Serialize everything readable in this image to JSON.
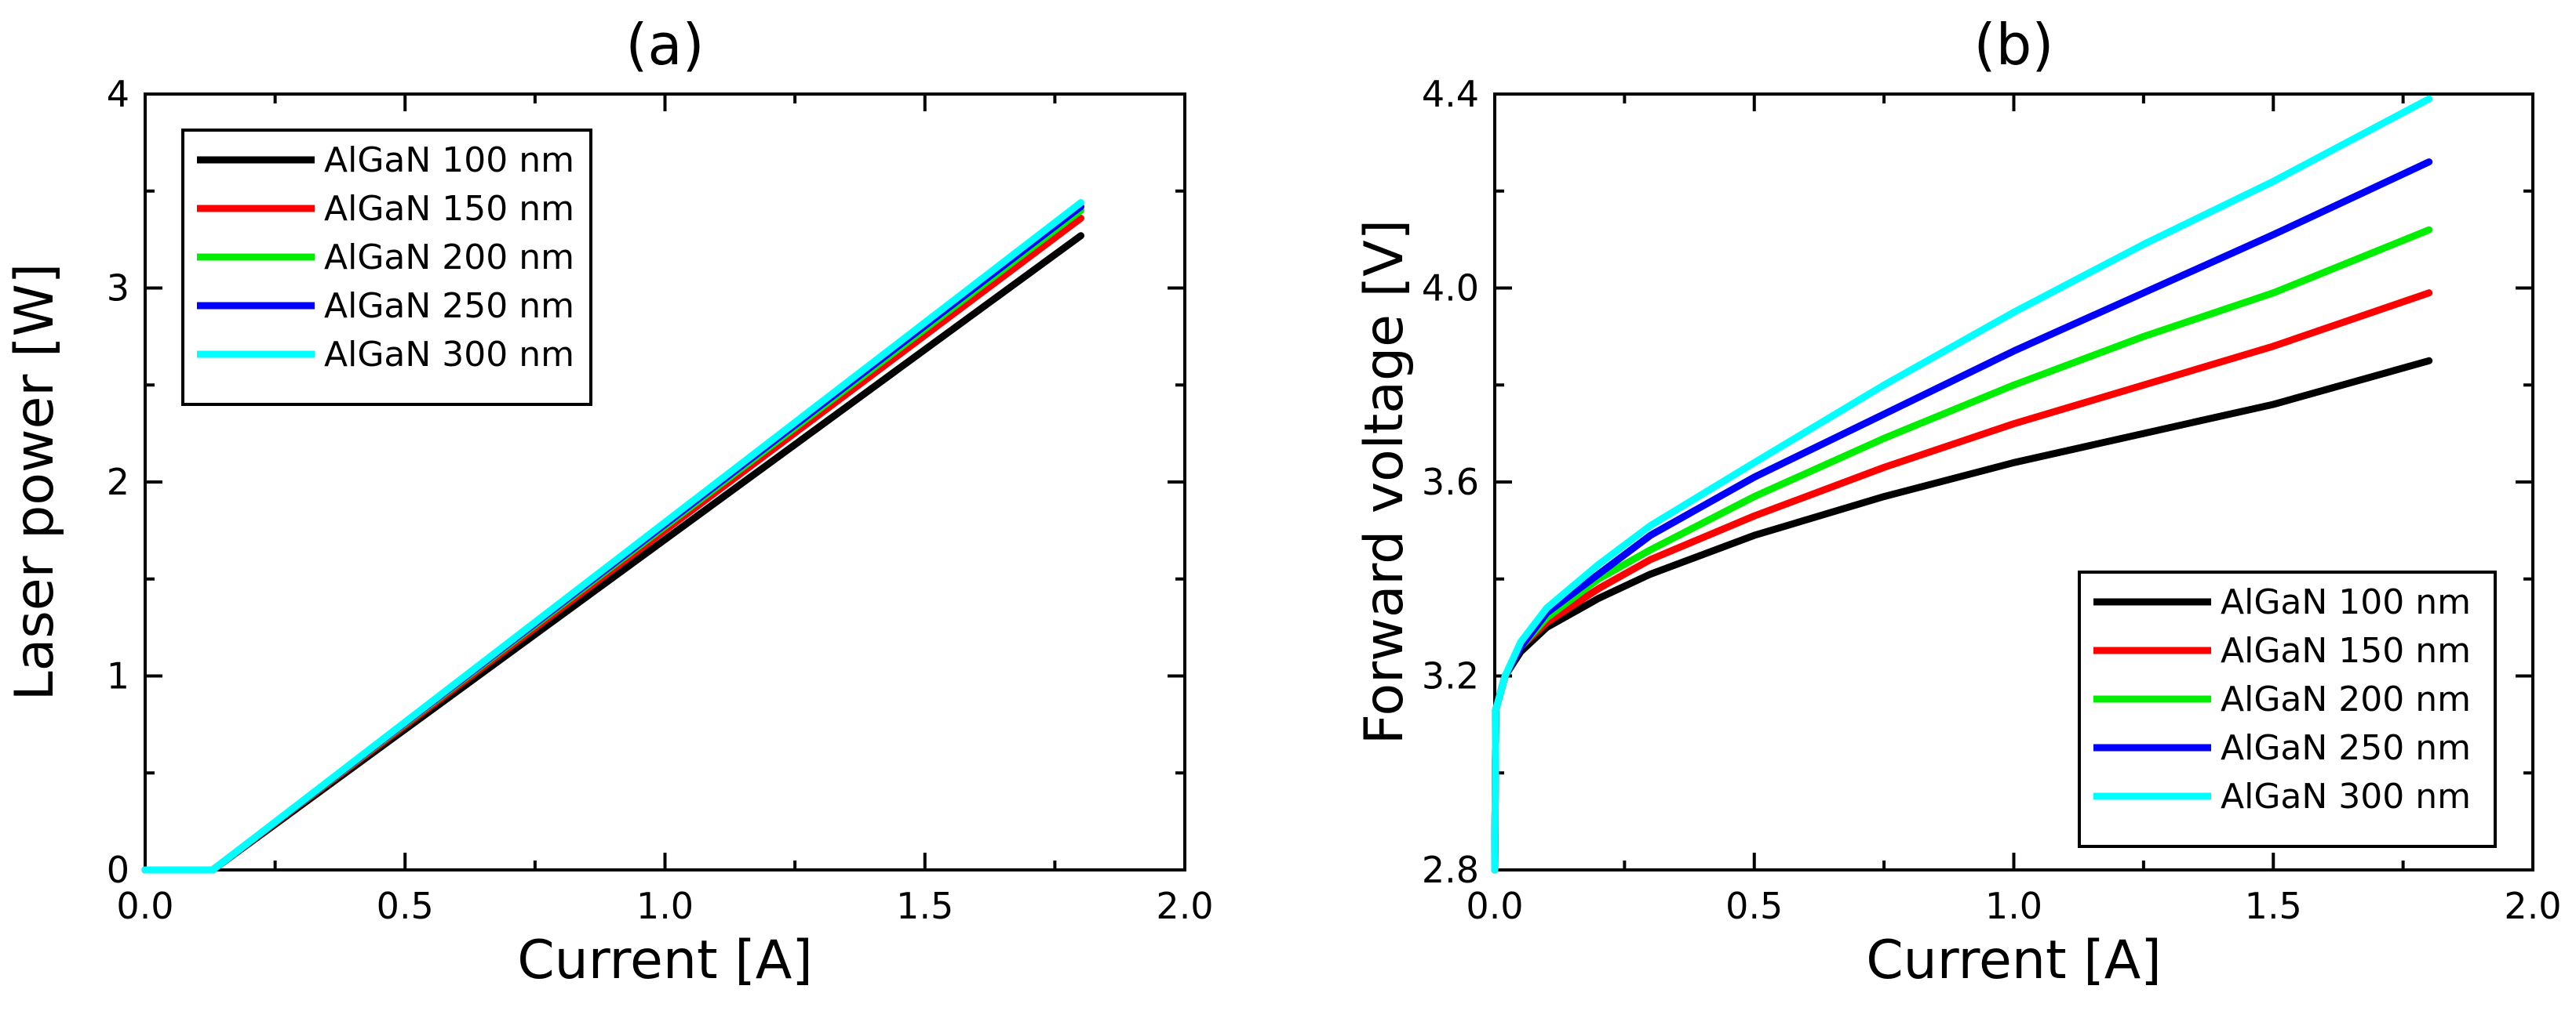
{
  "chart_data": [
    {
      "type": "line",
      "panel": "(a)",
      "title": "(a)",
      "xlabel": "Current [A]",
      "ylabel": "Laser power [W]",
      "xlim": [
        0,
        2.0
      ],
      "ylim": [
        0,
        4
      ],
      "xticks": [
        "0.0",
        "0.5",
        "1.0",
        "1.5",
        "2.0"
      ],
      "yticks": [
        "0",
        "1",
        "2",
        "3",
        "4"
      ],
      "xtick_values": [
        0,
        0.5,
        1.0,
        1.5,
        2.0
      ],
      "ytick_values": [
        0,
        1,
        2,
        3,
        4
      ],
      "legend_position": "top-left",
      "series": [
        {
          "name": "AlGaN 100 nm",
          "color": "#000000",
          "x": [
            0,
            0.12,
            0.13,
            1.8
          ],
          "y": [
            0,
            0,
            0,
            3.27
          ]
        },
        {
          "name": "AlGaN 150 nm",
          "color": "#ff0000",
          "x": [
            0,
            0.12,
            0.13,
            1.8
          ],
          "y": [
            0,
            0,
            0,
            3.36
          ]
        },
        {
          "name": "AlGaN 200 nm",
          "color": "#00ee00",
          "x": [
            0,
            0.12,
            0.13,
            1.8
          ],
          "y": [
            0,
            0,
            0,
            3.4
          ]
        },
        {
          "name": "AlGaN 250 nm",
          "color": "#0000ff",
          "x": [
            0,
            0.12,
            0.13,
            1.8
          ],
          "y": [
            0,
            0,
            0,
            3.42
          ]
        },
        {
          "name": "AlGaN 300 nm",
          "color": "#00ffff",
          "x": [
            0,
            0.12,
            0.13,
            1.8
          ],
          "y": [
            0,
            0,
            0,
            3.44
          ]
        }
      ]
    },
    {
      "type": "line",
      "panel": "(b)",
      "title": "(b)",
      "xlabel": "Current [A]",
      "ylabel": "Forward voltage [V]",
      "xlim": [
        0,
        2.0
      ],
      "ylim": [
        2.8,
        4.4
      ],
      "xticks": [
        "0.0",
        "0.5",
        "1.0",
        "1.5",
        "2.0"
      ],
      "yticks": [
        "2.8",
        "3.2",
        "3.6",
        "4.0",
        "4.4"
      ],
      "xtick_values": [
        0,
        0.5,
        1.0,
        1.5,
        2.0
      ],
      "ytick_values": [
        2.8,
        3.2,
        3.6,
        4.0,
        4.4
      ],
      "legend_position": "bottom-right",
      "series": [
        {
          "name": "AlGaN 100 nm",
          "color": "#000000",
          "x": [
            0,
            0.002,
            0.02,
            0.05,
            0.1,
            0.2,
            0.3,
            0.5,
            0.75,
            1.0,
            1.25,
            1.5,
            1.8
          ],
          "y": [
            2.8,
            3.13,
            3.2,
            3.25,
            3.3,
            3.36,
            3.41,
            3.49,
            3.57,
            3.64,
            3.7,
            3.76,
            3.85
          ]
        },
        {
          "name": "AlGaN 150 nm",
          "color": "#ff0000",
          "x": [
            0,
            0.002,
            0.02,
            0.05,
            0.1,
            0.2,
            0.3,
            0.5,
            0.75,
            1.0,
            1.25,
            1.5,
            1.8
          ],
          "y": [
            2.8,
            3.13,
            3.2,
            3.26,
            3.31,
            3.38,
            3.44,
            3.53,
            3.63,
            3.72,
            3.8,
            3.88,
            3.99
          ]
        },
        {
          "name": "AlGaN 200 nm",
          "color": "#00ee00",
          "x": [
            0,
            0.002,
            0.02,
            0.05,
            0.1,
            0.2,
            0.3,
            0.5,
            0.75,
            1.0,
            1.25,
            1.5,
            1.8
          ],
          "y": [
            2.8,
            3.13,
            3.2,
            3.26,
            3.32,
            3.4,
            3.46,
            3.57,
            3.69,
            3.8,
            3.9,
            3.99,
            4.12
          ]
        },
        {
          "name": "AlGaN 250 nm",
          "color": "#0000ff",
          "x": [
            0,
            0.002,
            0.02,
            0.05,
            0.1,
            0.2,
            0.3,
            0.5,
            0.75,
            1.0,
            1.25,
            1.5,
            1.8
          ],
          "y": [
            2.8,
            3.13,
            3.2,
            3.26,
            3.33,
            3.41,
            3.49,
            3.61,
            3.74,
            3.87,
            3.99,
            4.11,
            4.26
          ]
        },
        {
          "name": "AlGaN 300 nm",
          "color": "#00ffff",
          "x": [
            0,
            0.002,
            0.02,
            0.05,
            0.1,
            0.2,
            0.3,
            0.5,
            0.75,
            1.0,
            1.25,
            1.5,
            1.8
          ],
          "y": [
            2.8,
            3.13,
            3.2,
            3.27,
            3.34,
            3.43,
            3.51,
            3.64,
            3.8,
            3.95,
            4.09,
            4.22,
            4.39
          ]
        }
      ]
    }
  ]
}
